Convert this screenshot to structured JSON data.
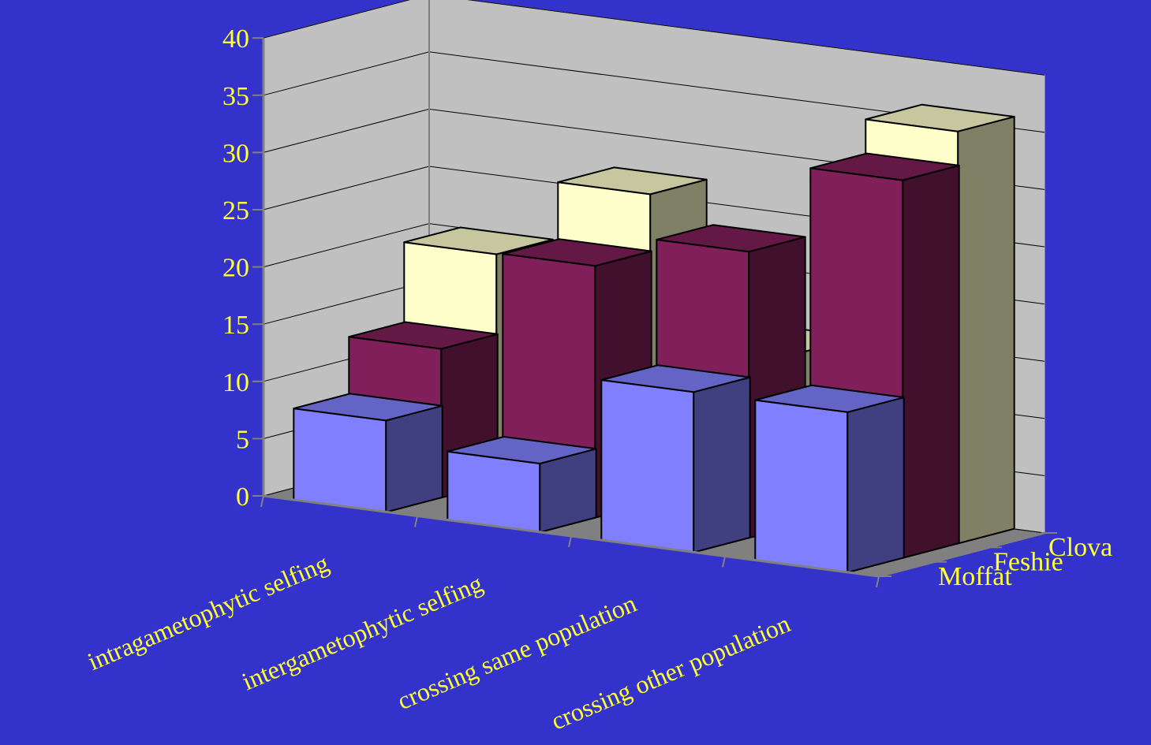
{
  "colors": {
    "background": "#3333cc",
    "wall": "#c0c0c0",
    "floor": "#808080",
    "gridline": "#000000",
    "label": "#ffff33"
  },
  "chart_data": {
    "type": "bar",
    "subtype": "3d-column",
    "title": "",
    "xlabel": "",
    "ylabel": "",
    "ylim": [
      0,
      40
    ],
    "yticks": [
      0,
      5,
      10,
      15,
      20,
      25,
      30,
      35,
      40
    ],
    "grid": true,
    "categories": [
      "intragametophytic selfing",
      "intergametophytic selfing",
      "crossing same population",
      "crossing other population"
    ],
    "series": [
      {
        "name": "Moffat",
        "color": "#8080ff",
        "values": [
          8,
          6,
          14,
          14
        ]
      },
      {
        "name": "Feshie",
        "color": "#801f5a",
        "values": [
          13,
          22,
          25,
          33
        ]
      },
      {
        "name": "Clova",
        "color": "#ffffcc",
        "values": [
          20,
          27,
          15,
          36
        ]
      }
    ]
  }
}
